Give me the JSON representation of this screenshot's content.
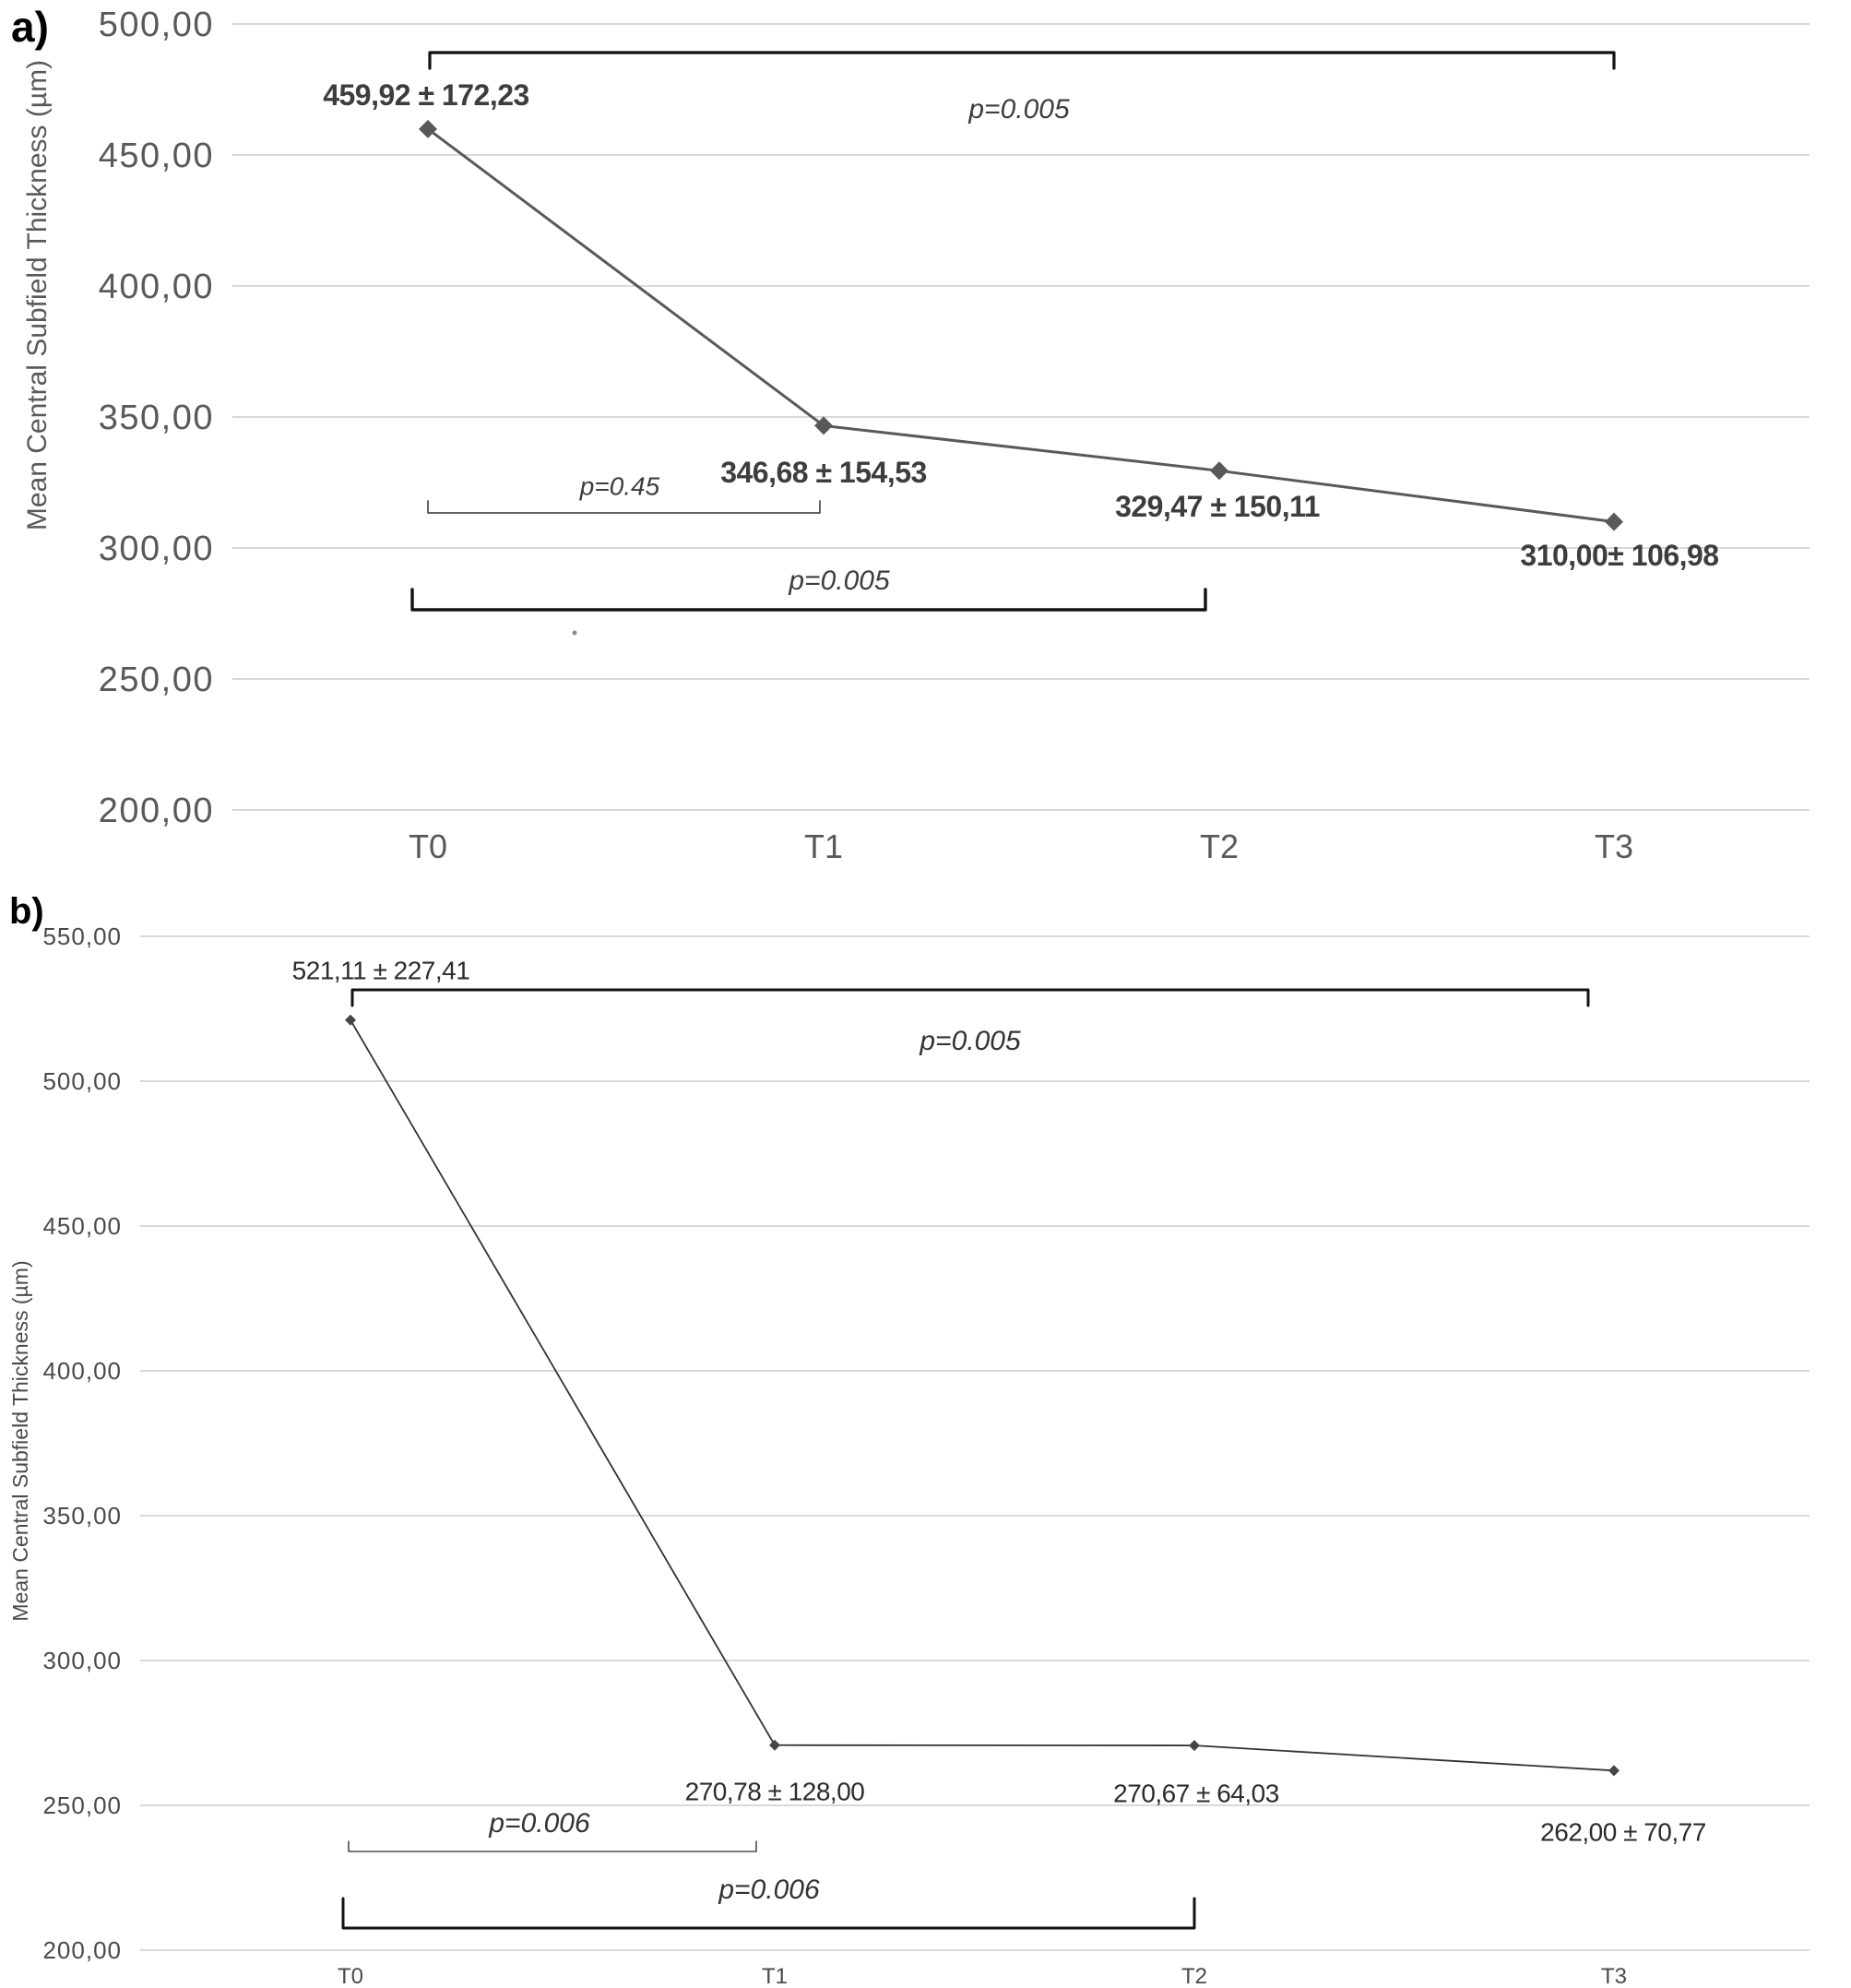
{
  "figure": {
    "description": "Two-panel line chart of Mean Central Subfield Thickness over four timepoints with standard deviations and significance brackets"
  },
  "chart_data": [
    {
      "panel_label": "a)",
      "type": "line",
      "title": "",
      "xlabel": "",
      "ylabel": "Mean Central Subfield Thickness (µm)",
      "categories": [
        "T0",
        "T1",
        "T2",
        "T3"
      ],
      "series": [
        {
          "name": "Mean CST",
          "values": [
            459.92,
            346.68,
            329.47,
            310.0
          ],
          "sd": [
            172.23,
            154.53,
            150.11,
            106.98
          ]
        }
      ],
      "point_labels": [
        "459,92 ± 172,23",
        "346,68 ± 154,53",
        "329,47 ± 150,11",
        "310,00± 106,98"
      ],
      "y_tick_labels": [
        "500,00",
        "450,00",
        "400,00",
        "350,00",
        "300,00",
        "250,00",
        "200,00"
      ],
      "y_tick_values": [
        500,
        450,
        400,
        350,
        300,
        250,
        200
      ],
      "ylim": [
        200,
        500
      ],
      "grid": true,
      "legend": false,
      "marker": "diamond",
      "annotations": [
        {
          "label": "p=0.005",
          "from": "T0",
          "to": "T3",
          "style": "thick",
          "open": "down"
        },
        {
          "label": "p=0.45",
          "from": "T0",
          "to": "T1",
          "style": "thin",
          "open": "up"
        },
        {
          "label": "p=0.005",
          "from": "T0",
          "to": "T2",
          "style": "thick",
          "open": "up"
        }
      ],
      "colors": {
        "series": "#595959",
        "marker": "#595959",
        "grid": "#d9d9d9",
        "axis_text": "#595959",
        "value_label": "#3d3d3d",
        "bracket_thick": "#121212",
        "bracket_thin": "#4a4a4a",
        "p_label": "#3d3d3d"
      }
    },
    {
      "panel_label": "b)",
      "type": "line",
      "title": "",
      "xlabel": "",
      "ylabel": "Mean Central Subfield Thickness (µm)",
      "categories": [
        "T0",
        "T1",
        "T2",
        "T3"
      ],
      "series": [
        {
          "name": "Mean CST",
          "values": [
            521.11,
            270.78,
            270.67,
            262.0
          ],
          "sd": [
            227.41,
            128.0,
            64.03,
            70.77
          ]
        }
      ],
      "point_labels": [
        "521,11 ± 227,41",
        "270,78 ± 128,00",
        "270,67 ± 64,03",
        "262,00 ± 70,77"
      ],
      "y_tick_labels": [
        "550,00",
        "500,00",
        "450,00",
        "400,00",
        "350,00",
        "300,00",
        "250,00",
        "200,00"
      ],
      "y_tick_values": [
        550,
        500,
        450,
        400,
        350,
        300,
        250,
        200
      ],
      "ylim": [
        200,
        550
      ],
      "grid": true,
      "legend": false,
      "marker": "diamond",
      "annotations": [
        {
          "label": "p=0.005",
          "from": "T0",
          "to": "T3",
          "style": "thick",
          "open": "down"
        },
        {
          "label": "p=0.006",
          "from": "T0",
          "to": "T1",
          "style": "thin",
          "open": "up"
        },
        {
          "label": "p=0.006",
          "from": "T0",
          "to": "T2",
          "style": "thick",
          "open": "up"
        }
      ],
      "colors": {
        "series": "#333333",
        "marker": "#454545",
        "grid": "#d9d9d9",
        "axis_text": "#4a4a4a",
        "value_label": "#2b2b2b",
        "bracket_thick": "#121212",
        "bracket_thin": "#4a4a4a",
        "p_label": "#333333"
      }
    }
  ]
}
